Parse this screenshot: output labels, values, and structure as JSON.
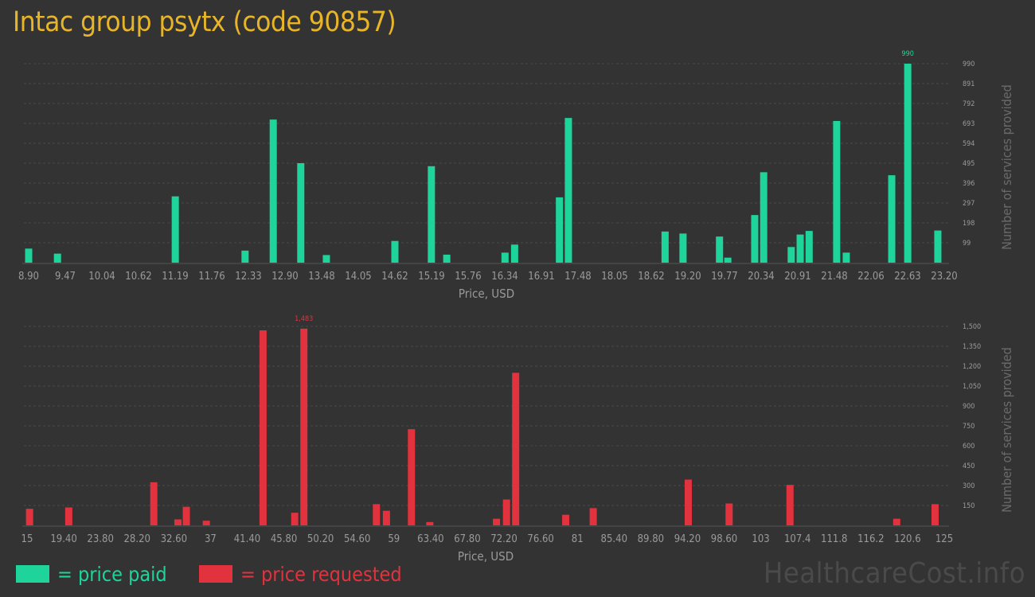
{
  "title": "Intac group psytx (code 90857)",
  "watermark": "HealthcareCost.info",
  "colors": {
    "paid": "#1fd49a",
    "requested": "#e1323e",
    "title": "#e8b528",
    "axis_text": "#9a9a9a",
    "grid": "#4a4a4a"
  },
  "legend": {
    "paid_label": "= price paid",
    "requested_label": "= price requested"
  },
  "chart_data": [
    {
      "type": "bar",
      "series_name": "price paid",
      "xlabel": "Price, USD",
      "ylabel": "Number of services provided",
      "x_ticks": [
        "8.90",
        "9.47",
        "10.04",
        "10.62",
        "11.19",
        "11.76",
        "12.33",
        "12.90",
        "13.48",
        "14.05",
        "14.62",
        "15.19",
        "15.76",
        "16.34",
        "16.91",
        "17.48",
        "18.05",
        "18.62",
        "19.20",
        "19.77",
        "20.34",
        "20.91",
        "21.48",
        "22.06",
        "22.63",
        "23.20"
      ],
      "y_ticks": [
        "99",
        "198",
        "297",
        "396",
        "495",
        "594",
        "693",
        "792",
        "891",
        "990"
      ],
      "ylim": [
        0,
        990
      ],
      "xlim": [
        8.9,
        23.2
      ],
      "grid": true,
      "max_label": "990",
      "bars": [
        {
          "x": 8.9,
          "y": 70
        },
        {
          "x": 9.35,
          "y": 45
        },
        {
          "x": 11.19,
          "y": 330
        },
        {
          "x": 12.28,
          "y": 60
        },
        {
          "x": 12.72,
          "y": 712
        },
        {
          "x": 13.15,
          "y": 495
        },
        {
          "x": 13.55,
          "y": 38
        },
        {
          "x": 14.62,
          "y": 108
        },
        {
          "x": 15.19,
          "y": 480
        },
        {
          "x": 15.43,
          "y": 40
        },
        {
          "x": 16.34,
          "y": 50
        },
        {
          "x": 16.49,
          "y": 90
        },
        {
          "x": 17.19,
          "y": 325
        },
        {
          "x": 17.33,
          "y": 720
        },
        {
          "x": 18.84,
          "y": 155
        },
        {
          "x": 19.12,
          "y": 145
        },
        {
          "x": 19.69,
          "y": 130
        },
        {
          "x": 19.82,
          "y": 25
        },
        {
          "x": 20.24,
          "y": 237
        },
        {
          "x": 20.38,
          "y": 450
        },
        {
          "x": 20.81,
          "y": 78
        },
        {
          "x": 20.95,
          "y": 140
        },
        {
          "x": 21.09,
          "y": 158
        },
        {
          "x": 21.52,
          "y": 705
        },
        {
          "x": 21.67,
          "y": 50
        },
        {
          "x": 22.38,
          "y": 435
        },
        {
          "x": 22.63,
          "y": 990
        },
        {
          "x": 23.1,
          "y": 160
        }
      ]
    },
    {
      "type": "bar",
      "series_name": "price requested",
      "xlabel": "Price, USD",
      "ylabel": "Number of services provided",
      "x_ticks": [
        "15",
        "19.40",
        "23.80",
        "28.20",
        "32.60",
        "37",
        "41.40",
        "45.80",
        "50.20",
        "54.60",
        "59",
        "63.40",
        "67.80",
        "72.20",
        "76.60",
        "81",
        "85.40",
        "89.80",
        "94.20",
        "98.60",
        "103",
        "107.4",
        "111.8",
        "116.2",
        "120.6",
        "125"
      ],
      "y_ticks": [
        "150",
        "300",
        "450",
        "600",
        "750",
        "900",
        "1,050",
        "1,200",
        "1,350",
        "1,500"
      ],
      "ylim": [
        0,
        1500
      ],
      "xlim": [
        15,
        125
      ],
      "grid": true,
      "max_label": "1,483",
      "bars": [
        {
          "x": 15.3,
          "y": 125
        },
        {
          "x": 20.0,
          "y": 135
        },
        {
          "x": 30.2,
          "y": 325
        },
        {
          "x": 33.1,
          "y": 45
        },
        {
          "x": 34.1,
          "y": 140
        },
        {
          "x": 36.5,
          "y": 35
        },
        {
          "x": 43.3,
          "y": 1470
        },
        {
          "x": 47.1,
          "y": 95
        },
        {
          "x": 48.2,
          "y": 1483
        },
        {
          "x": 56.9,
          "y": 160
        },
        {
          "x": 58.1,
          "y": 110
        },
        {
          "x": 61.1,
          "y": 725
        },
        {
          "x": 63.3,
          "y": 25
        },
        {
          "x": 71.3,
          "y": 50
        },
        {
          "x": 72.5,
          "y": 195
        },
        {
          "x": 73.6,
          "y": 1150
        },
        {
          "x": 79.6,
          "y": 80
        },
        {
          "x": 82.9,
          "y": 130
        },
        {
          "x": 94.3,
          "y": 345
        },
        {
          "x": 99.2,
          "y": 165
        },
        {
          "x": 106.5,
          "y": 305
        },
        {
          "x": 119.3,
          "y": 50
        },
        {
          "x": 123.9,
          "y": 160
        }
      ]
    }
  ]
}
